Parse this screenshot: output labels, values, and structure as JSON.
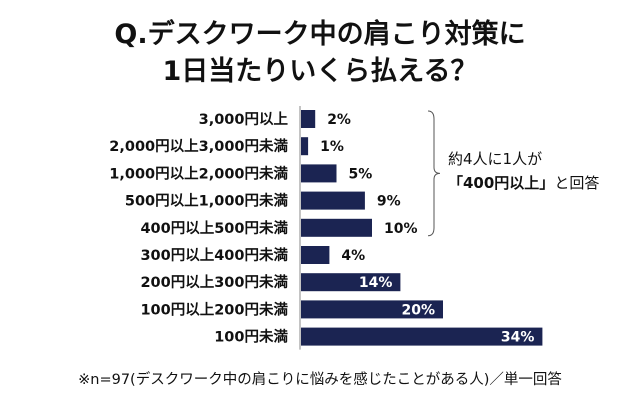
{
  "title": {
    "line1": "Q.デスクワーク中の肩こり対策に",
    "line2": "1日当たりいくら払える？"
  },
  "annotation": {
    "line1": "約4人に1人が",
    "highlight": "「400円以上」",
    "line2_rest": "と回答"
  },
  "footnote": "※n=97(デスクワーク中の肩こりに悩みを感じたことがある人)／単一回答",
  "chart_data": {
    "type": "bar",
    "orientation": "horizontal",
    "categories": [
      "3,000円以上",
      "2,000円以上3,000円未満",
      "1,000円以上2,000円未満",
      "500円以上1,000円未満",
      "400円以上500円未満",
      "300円以上400円未満",
      "200円以上300円未満",
      "100円以上200円未満",
      "100円未満"
    ],
    "values": [
      2,
      1,
      5,
      9,
      10,
      4,
      14,
      20,
      34
    ],
    "value_labels": [
      "2%",
      "1%",
      "5%",
      "9%",
      "10%",
      "4%",
      "14%",
      "20%",
      "34%"
    ],
    "unit": "%",
    "bar_color": "#1b2452",
    "grid": false,
    "legend": "none"
  }
}
